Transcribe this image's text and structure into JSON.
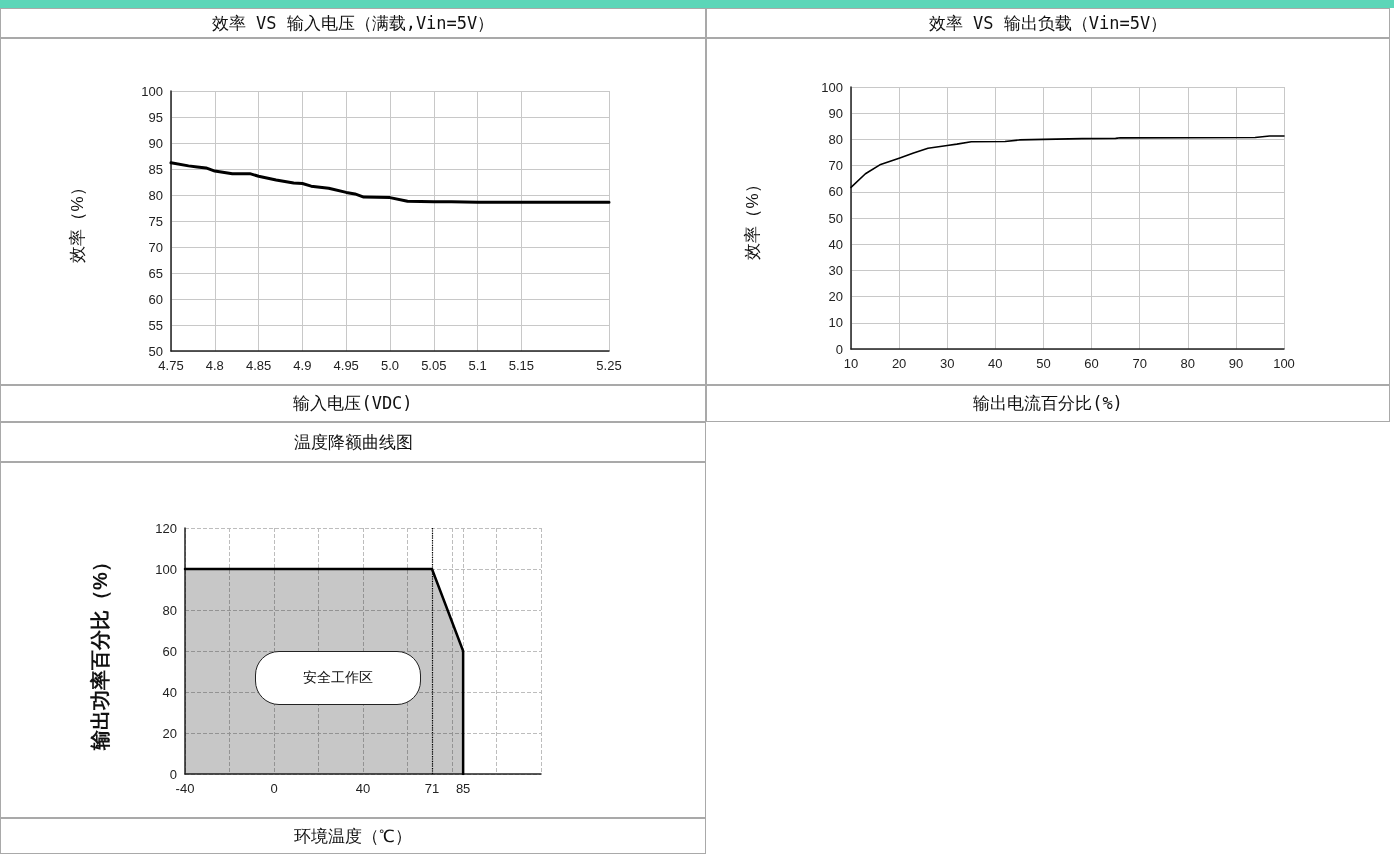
{
  "chart_data": [
    {
      "type": "line",
      "title": "效率 VS 输入电压（满载,Vin=5V）",
      "xlabel": "输入电压(VDC)",
      "ylabel": "效率（%）",
      "x": [
        4.75,
        4.77,
        4.78,
        4.79,
        4.8,
        4.82,
        4.84,
        4.85,
        4.87,
        4.89,
        4.9,
        4.91,
        4.93,
        4.95,
        4.96,
        4.97,
        5.0,
        5.02,
        5.05,
        5.07,
        5.1,
        5.25
      ],
      "series": [
        {
          "color": "#000000",
          "values": [
            86.2,
            85.6,
            85.4,
            85.2,
            84.6,
            84.1,
            84.1,
            83.6,
            82.9,
            82.3,
            82.2,
            81.7,
            81.3,
            80.5,
            80.2,
            79.6,
            79.5,
            78.8,
            78.7,
            78.7,
            78.6,
            78.6
          ]
        }
      ],
      "xlim": [
        4.75,
        5.25
      ],
      "xticks": [
        4.75,
        4.8,
        4.85,
        4.9,
        4.95,
        {
          "value": 5,
          "label": "5.0"
        },
        5.05,
        5.1,
        5.15,
        5.25
      ],
      "ylim": [
        50,
        100
      ],
      "yticks": [
        50,
        55,
        60,
        65,
        70,
        75,
        80,
        85,
        90,
        95,
        100
      ],
      "grid": true,
      "marker": "none",
      "line_style": "solid"
    },
    {
      "type": "line",
      "title": "效率 VS 输出负载（Vin=5V）",
      "xlabel": "输出电流百分比(%)",
      "ylabel": "效率（%）",
      "x": [
        10,
        13,
        16,
        20,
        23,
        26,
        30,
        32,
        35,
        42,
        45,
        50,
        58,
        65,
        66,
        94,
        97,
        100
      ],
      "series": [
        {
          "color": "#000000",
          "values": [
            61.7,
            66.9,
            70.3,
            72.8,
            74.8,
            76.6,
            77.7,
            78.2,
            79.1,
            79.2,
            79.8,
            80.0,
            80.3,
            80.4,
            80.6,
            80.7,
            81.3,
            81.3
          ]
        }
      ],
      "xlim": [
        10,
        100
      ],
      "xticks": [
        10,
        20,
        30,
        40,
        50,
        60,
        70,
        80,
        90,
        100
      ],
      "ylim": [
        0,
        100
      ],
      "yticks": [
        0,
        10,
        20,
        30,
        40,
        50,
        60,
        70,
        80,
        90,
        100
      ],
      "grid": true,
      "marker": "none",
      "line_style": "solid"
    },
    {
      "type": "area",
      "title": "温度降额曲线图",
      "xlabel": "环境温度（℃）",
      "ylabel": "输出功率百分比（%）",
      "x": [
        -40,
        71,
        85,
        85
      ],
      "series": [
        {
          "color": "#000000",
          "values": [
            100,
            100,
            60,
            0
          ]
        }
      ],
      "xlim": [
        -40,
        120
      ],
      "xticks": [
        -40,
        {
          "value": -20,
          "label": null
        },
        0,
        {
          "value": 20,
          "label": null
        },
        40,
        {
          "value": 60,
          "label": null
        },
        71,
        {
          "value": 80,
          "label": null
        },
        85,
        {
          "value": 100,
          "label": null
        },
        {
          "value": 120,
          "label": null
        }
      ],
      "ylim": [
        0,
        120
      ],
      "yticks": [
        0,
        20,
        40,
        60,
        80,
        100,
        120
      ],
      "grid": true,
      "marker": "none",
      "line_style": "solid",
      "ref_lines": [
        {
          "axis": "x",
          "value": 71,
          "line_style": "dotted",
          "color": "#000000"
        }
      ],
      "annotations": [
        "安全工作区"
      ]
    }
  ]
}
